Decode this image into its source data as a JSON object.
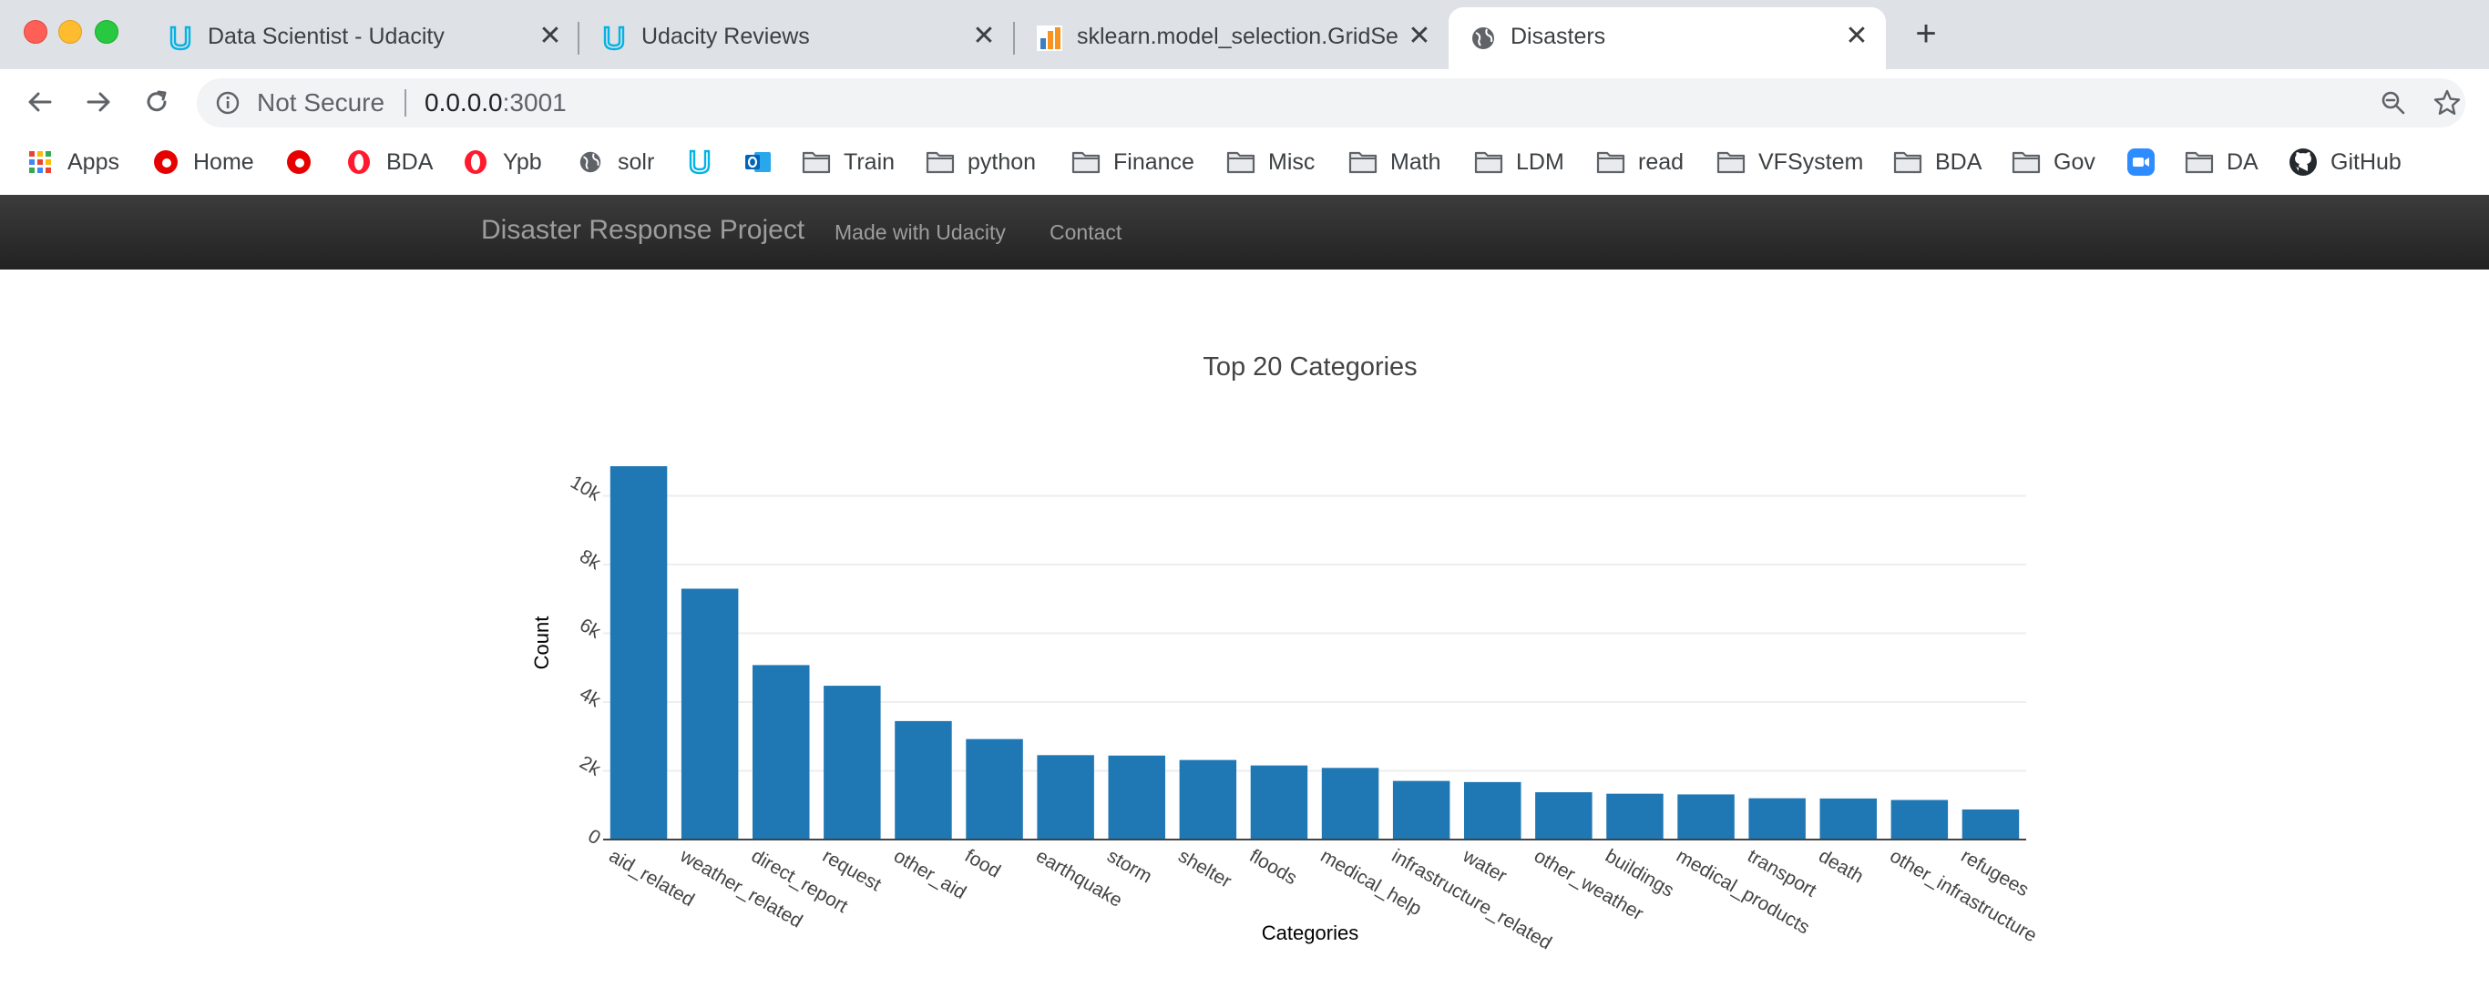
{
  "browser": {
    "tabs": [
      {
        "title": "Data Scientist - Udacity",
        "icon": "udacity-icon"
      },
      {
        "title": "Udacity Reviews",
        "icon": "udacity-icon"
      },
      {
        "title": "sklearn.model_selection.GridSearchCV",
        "icon": "sklearn-icon"
      },
      {
        "title": "Disasters",
        "icon": "globe-icon",
        "active": true
      }
    ],
    "close_glyph": "✕",
    "new_tab_glyph": "+",
    "address": {
      "security_label": "Not Secure",
      "host": "0.0.0.0",
      "port": ":3001"
    },
    "bookmarks": [
      {
        "label": "Apps",
        "icon": "apps-grid-icon"
      },
      {
        "label": "Home",
        "icon": "vodafone-icon"
      },
      {
        "label": "",
        "icon": "vodafone-icon"
      },
      {
        "label": "BDA",
        "icon": "opera-icon"
      },
      {
        "label": "Ypb",
        "icon": "opera-icon"
      },
      {
        "label": "solr",
        "icon": "globe-icon"
      },
      {
        "label": "",
        "icon": "udacity-icon"
      },
      {
        "label": "",
        "icon": "outlook-icon"
      },
      {
        "label": "Train",
        "icon": "folder-icon"
      },
      {
        "label": "python",
        "icon": "folder-icon"
      },
      {
        "label": "Finance",
        "icon": "folder-icon"
      },
      {
        "label": "Misc",
        "icon": "folder-icon"
      },
      {
        "label": "Math",
        "icon": "folder-icon"
      },
      {
        "label": "LDM",
        "icon": "folder-icon"
      },
      {
        "label": "read",
        "icon": "folder-icon"
      },
      {
        "label": "VFSystem",
        "icon": "folder-icon"
      },
      {
        "label": "BDA",
        "icon": "folder-icon"
      },
      {
        "label": "Gov",
        "icon": "folder-icon"
      },
      {
        "label": "",
        "icon": "zoom-icon"
      },
      {
        "label": "DA",
        "icon": "folder-icon"
      },
      {
        "label": "GitHub",
        "icon": "github-icon"
      }
    ]
  },
  "navbar": {
    "brand": "Disaster Response Project",
    "links": [
      "Made with Udacity",
      "Contact"
    ]
  },
  "colors": {
    "bar": "#1f77b4",
    "navbar": "#222222"
  },
  "chart_data": {
    "type": "bar",
    "title": "Top 20 Categories",
    "xlabel": "Categories",
    "ylabel": "Count",
    "categories": [
      "aid_related",
      "weather_related",
      "direct_report",
      "request",
      "other_aid",
      "food",
      "earthquake",
      "storm",
      "shelter",
      "floods",
      "medical_help",
      "infrastructure_related",
      "water",
      "other_weather",
      "buildings",
      "medical_products",
      "transport",
      "death",
      "other_infrastructure",
      "refugees"
    ],
    "values": [
      10860,
      7297,
      5075,
      4474,
      3446,
      2923,
      2455,
      2443,
      2314,
      2155,
      2084,
      1705,
      1672,
      1376,
      1333,
      1313,
      1201,
      1194,
      1151,
      875
    ],
    "ylim": [
      0,
      10860
    ],
    "yticks": [
      0,
      2000,
      4000,
      6000,
      8000,
      10000
    ],
    "ytick_labels": [
      "0",
      "2k",
      "4k",
      "6k",
      "8k",
      "10k"
    ],
    "grid": true,
    "legend": "none"
  }
}
